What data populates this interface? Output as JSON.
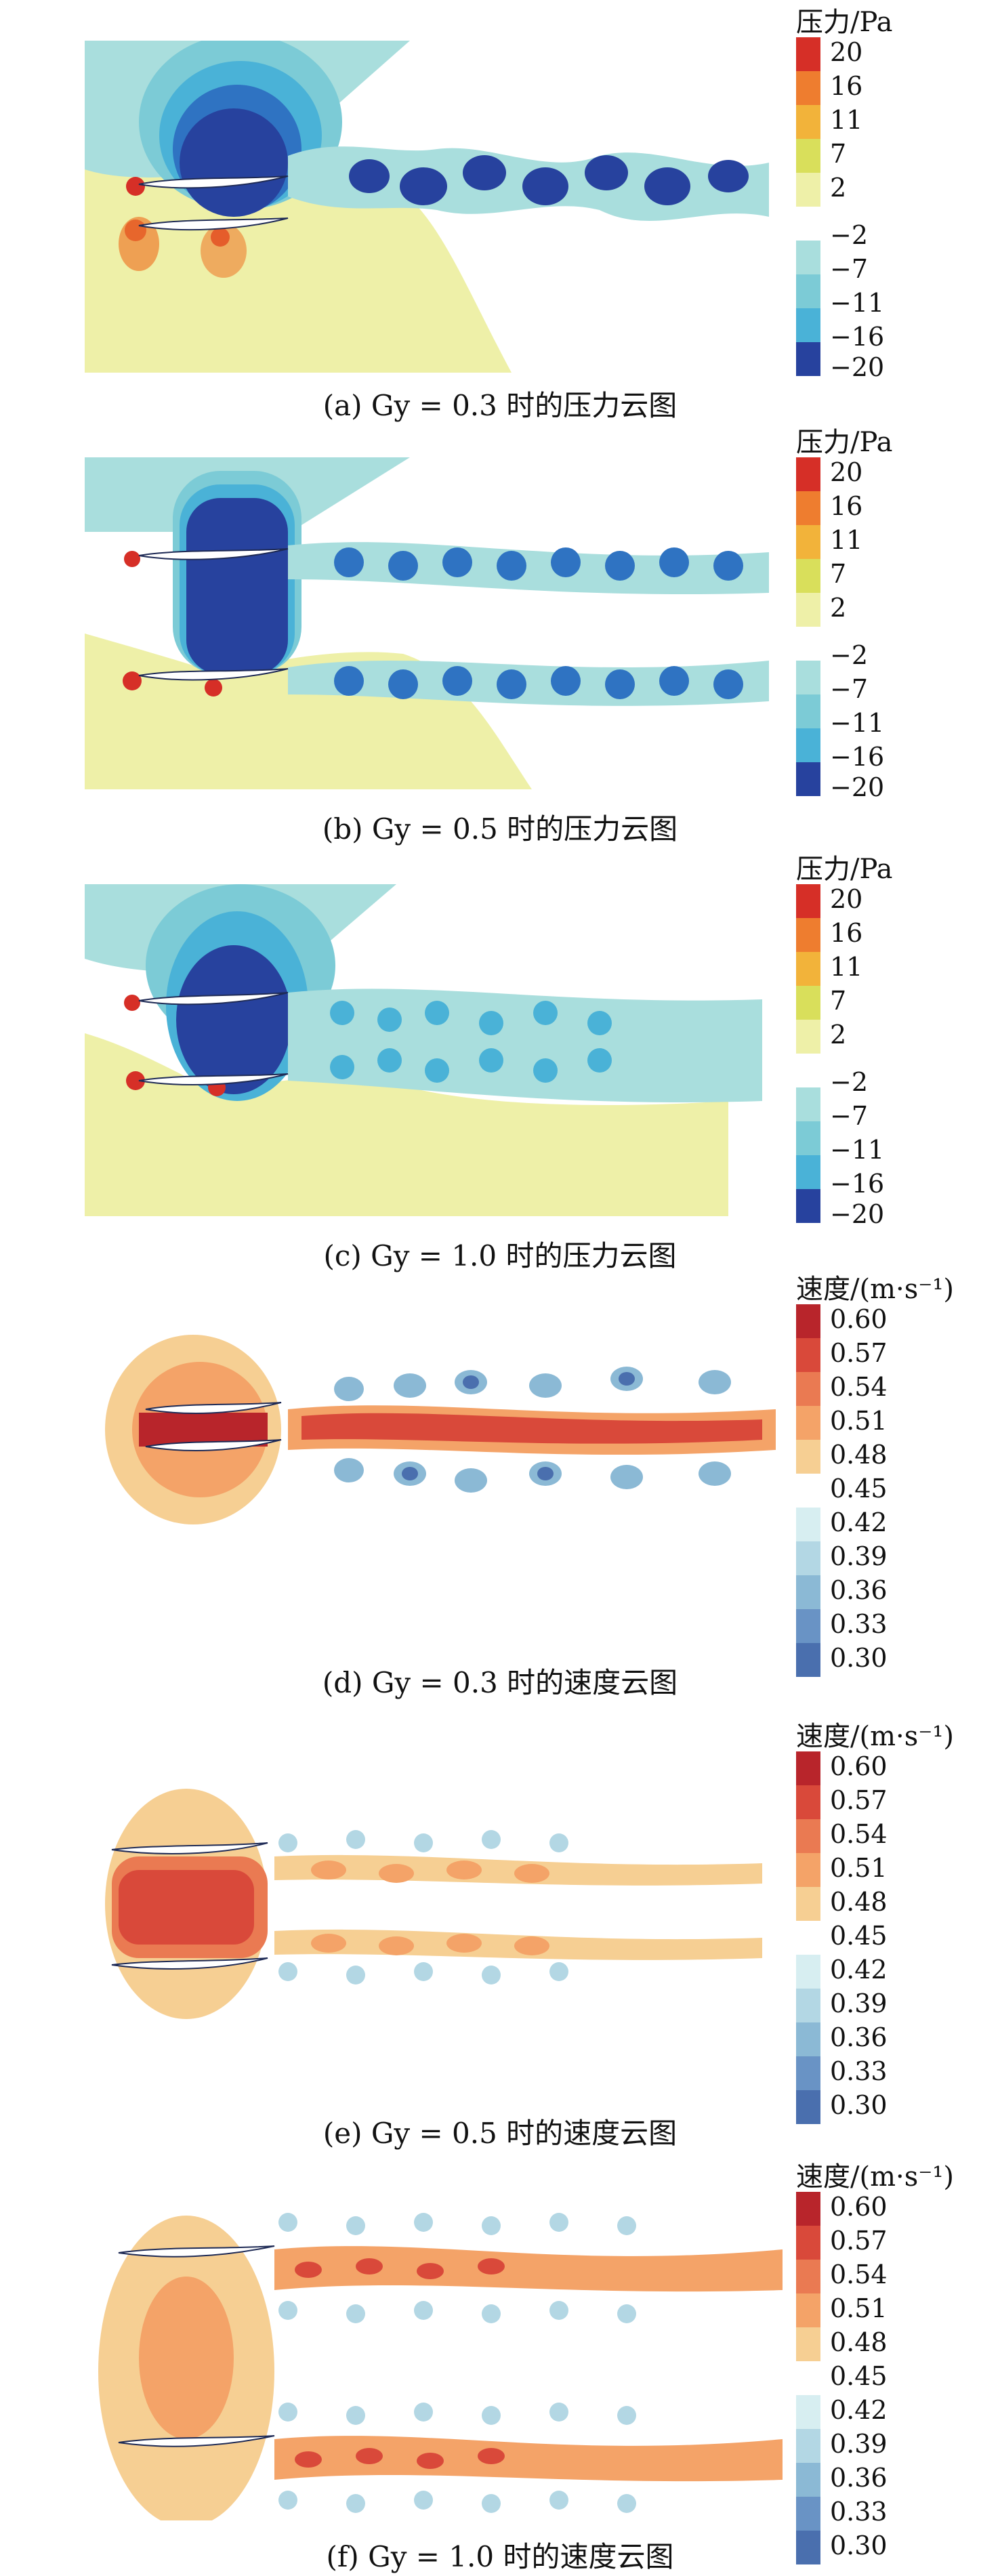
{
  "panels": [
    {
      "caption": "(a) Gy = 0.3 时的压力云图",
      "legend_title": "压力/Pa",
      "ticks": [
        "20",
        "16",
        "11",
        "7",
        "2",
        "−2",
        "−7",
        "−11",
        "−16",
        "−20"
      ]
    },
    {
      "caption": "(b) Gy = 0.5 时的压力云图",
      "legend_title": "压力/Pa",
      "ticks": [
        "20",
        "16",
        "11",
        "7",
        "2",
        "−2",
        "−7",
        "−11",
        "−16",
        "−20"
      ]
    },
    {
      "caption": "(c) Gy = 1.0 时的压力云图",
      "legend_title": "压力/Pa",
      "ticks": [
        "20",
        "16",
        "11",
        "7",
        "2",
        "−2",
        "−7",
        "−11",
        "−16",
        "−20"
      ]
    },
    {
      "caption": "(d) Gy = 0.3 时的速度云图",
      "legend_title": "速度/(m·s⁻¹)",
      "ticks": [
        "0.60",
        "0.57",
        "0.54",
        "0.51",
        "0.48",
        "0.45",
        "0.42",
        "0.39",
        "0.36",
        "0.33",
        "0.30"
      ]
    },
    {
      "caption": "(e) Gy = 0.5 时的速度云图",
      "legend_title": "速度/(m·s⁻¹)",
      "ticks": [
        "0.60",
        "0.57",
        "0.54",
        "0.51",
        "0.48",
        "0.45",
        "0.42",
        "0.39",
        "0.36",
        "0.33",
        "0.30"
      ]
    },
    {
      "caption": "(f) Gy = 1.0 时的速度云图",
      "legend_title": "速度/(m·s⁻¹)",
      "ticks": [
        "0.60",
        "0.57",
        "0.54",
        "0.51",
        "0.48",
        "0.45",
        "0.42",
        "0.39",
        "0.36",
        "0.33",
        "0.30"
      ]
    }
  ],
  "colors": {
    "pressure_scale": [
      "#d62f27",
      "#ee7d2f",
      "#f2b33a",
      "#d9df5b",
      "#eef0a8",
      "#ffffff",
      "#a9dedd",
      "#7ccbd6",
      "#4ab2d7",
      "#2f73c2",
      "#27429e"
    ],
    "velocity_scale": [
      "#b8252b",
      "#d9493a",
      "#ea7a52",
      "#f4a368",
      "#f6cf93",
      "#f8e6bf",
      "#ffffff",
      "#d7eef1",
      "#b3d7e4",
      "#8bb9d5",
      "#6993c5",
      "#4a6fae"
    ],
    "vehicle": "#1e2a55"
  }
}
